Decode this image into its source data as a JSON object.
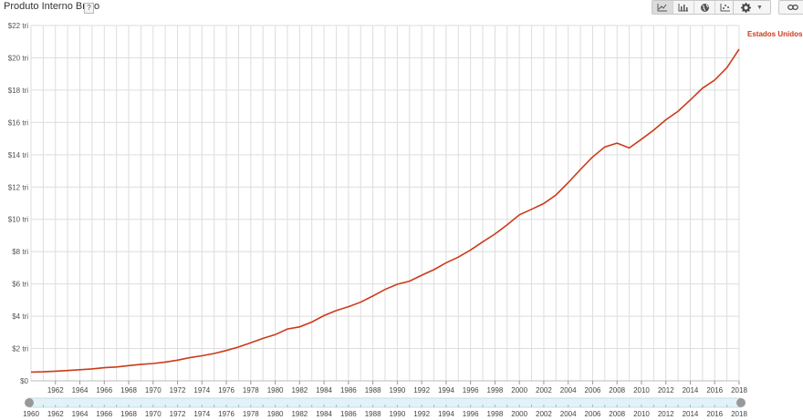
{
  "header": {
    "title": "Produto Interno Bruto",
    "help": "?"
  },
  "toolbar": {
    "view_buttons": [
      {
        "icon": "line-chart-icon",
        "active": true
      },
      {
        "icon": "bar-chart-icon",
        "active": false
      },
      {
        "icon": "globe-icon",
        "active": false
      },
      {
        "icon": "scatter-chart-icon",
        "active": false
      }
    ],
    "settings_icon": "gear-icon",
    "settings_menu_icon": "chevron-down-icon",
    "link_icon": "link-icon"
  },
  "colors": {
    "series": "#cc3a1a",
    "grid": "#dddddd",
    "slider_fill": "#e3f2f9",
    "slider_handle": "#999999"
  },
  "chart_data": {
    "type": "line",
    "title": "Produto Interno Bruto",
    "ylim": [
      0,
      22
    ],
    "yticks": [
      "$0",
      "$2 tri",
      "$4 tri",
      "$6 tri",
      "$8 tri",
      "$10 tri",
      "$12 tri",
      "$14 tri",
      "$16 tri",
      "$18 tri",
      "$20 tri",
      "$22 tri"
    ],
    "xlim": [
      1960,
      2018
    ],
    "xticks": [
      "1962",
      "1964",
      "1966",
      "1968",
      "1970",
      "1972",
      "1974",
      "1976",
      "1978",
      "1980",
      "1982",
      "1984",
      "1986",
      "1988",
      "1990",
      "1992",
      "1994",
      "1996",
      "1998",
      "2000",
      "2002",
      "2004",
      "2006",
      "2008",
      "2010",
      "2012",
      "2014",
      "2016",
      "2018"
    ],
    "grid": true,
    "series": [
      {
        "name": "Estados Unidos",
        "x": [
          1960,
          1961,
          1962,
          1963,
          1964,
          1965,
          1966,
          1967,
          1968,
          1969,
          1970,
          1971,
          1972,
          1973,
          1974,
          1975,
          1976,
          1977,
          1978,
          1979,
          1980,
          1981,
          1982,
          1983,
          1984,
          1985,
          1986,
          1987,
          1988,
          1989,
          1990,
          1991,
          1992,
          1993,
          1994,
          1995,
          1996,
          1997,
          1998,
          1999,
          2000,
          2001,
          2002,
          2003,
          2004,
          2005,
          2006,
          2007,
          2008,
          2009,
          2010,
          2011,
          2012,
          2013,
          2014,
          2015,
          2016,
          2017,
          2018
        ],
        "y": [
          0.54,
          0.56,
          0.6,
          0.64,
          0.69,
          0.74,
          0.81,
          0.86,
          0.94,
          1.02,
          1.07,
          1.16,
          1.28,
          1.43,
          1.55,
          1.69,
          1.88,
          2.09,
          2.36,
          2.63,
          2.86,
          3.21,
          3.34,
          3.64,
          4.04,
          4.35,
          4.59,
          4.87,
          5.25,
          5.66,
          5.98,
          6.17,
          6.54,
          6.88,
          7.31,
          7.66,
          8.1,
          8.61,
          9.09,
          9.66,
          10.28,
          10.62,
          10.98,
          11.51,
          12.27,
          13.09,
          13.86,
          14.48,
          14.72,
          14.42,
          14.96,
          15.52,
          16.16,
          16.69,
          17.39,
          18.12,
          18.62,
          19.39,
          20.54
        ]
      }
    ],
    "slider_labels": [
      "1960",
      "1962",
      "1964",
      "1966",
      "1968",
      "1970",
      "1972",
      "1974",
      "1976",
      "1978",
      "1980",
      "1982",
      "1984",
      "1986",
      "1988",
      "1990",
      "1992",
      "1994",
      "1996",
      "1998",
      "2000",
      "2002",
      "2004",
      "2006",
      "2008",
      "2010",
      "2012",
      "2014",
      "2016",
      "2018"
    ]
  }
}
